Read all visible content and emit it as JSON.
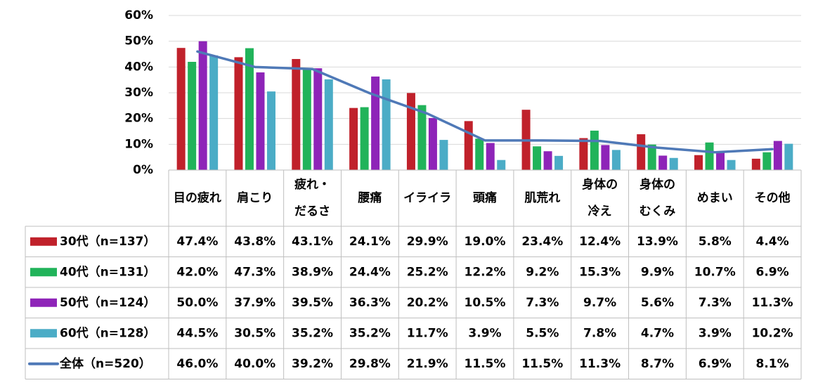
{
  "chart_data": {
    "type": "bar",
    "ylim": [
      0,
      60
    ],
    "yticks": [
      "0%",
      "10%",
      "20%",
      "30%",
      "40%",
      "50%",
      "60%"
    ],
    "grid": true,
    "categories": [
      [
        "目の疲れ"
      ],
      [
        "肩こり"
      ],
      [
        "疲れ・",
        "だるさ"
      ],
      [
        "腰痛"
      ],
      [
        "イライラ"
      ],
      [
        "頭痛"
      ],
      [
        "肌荒れ"
      ],
      [
        "身体の",
        "冷え"
      ],
      [
        "身体の",
        "むくみ"
      ],
      [
        "めまい"
      ],
      [
        "その他"
      ]
    ],
    "series": [
      {
        "name": "30代（n=137）",
        "kind": "bar",
        "color": "#C0212B",
        "values": [
          47.4,
          43.8,
          43.1,
          24.1,
          29.9,
          19.0,
          23.4,
          12.4,
          13.9,
          5.8,
          4.4
        ],
        "labels": [
          "47.4%",
          "43.8%",
          "43.1%",
          "24.1%",
          "29.9%",
          "19.0%",
          "23.4%",
          "12.4%",
          "13.9%",
          "5.8%",
          "4.4%"
        ]
      },
      {
        "name": "40代（n=131）",
        "kind": "bar",
        "color": "#21B35A",
        "values": [
          42.0,
          47.3,
          38.9,
          24.4,
          25.2,
          12.2,
          9.2,
          15.3,
          9.9,
          10.7,
          6.9
        ],
        "labels": [
          "42.0%",
          "47.3%",
          "38.9%",
          "24.4%",
          "25.2%",
          "12.2%",
          "9.2%",
          "15.3%",
          "9.9%",
          "10.7%",
          "6.9%"
        ]
      },
      {
        "name": "50代（n=124）",
        "kind": "bar",
        "color": "#8E24B8",
        "values": [
          50.0,
          37.9,
          39.5,
          36.3,
          20.2,
          10.5,
          7.3,
          9.7,
          5.6,
          7.3,
          11.3
        ],
        "labels": [
          "50.0%",
          "37.9%",
          "39.5%",
          "36.3%",
          "20.2%",
          "10.5%",
          "7.3%",
          "9.7%",
          "5.6%",
          "7.3%",
          "11.3%"
        ]
      },
      {
        "name": "60代（n=128）",
        "kind": "bar",
        "color": "#4BACC6",
        "values": [
          44.5,
          30.5,
          35.2,
          35.2,
          11.7,
          3.9,
          5.5,
          7.8,
          4.7,
          3.9,
          10.2
        ],
        "labels": [
          "44.5%",
          "30.5%",
          "35.2%",
          "35.2%",
          "11.7%",
          "3.9%",
          "5.5%",
          "7.8%",
          "4.7%",
          "3.9%",
          "10.2%"
        ]
      },
      {
        "name": "全体（n=520）",
        "kind": "line",
        "color": "#4F79B7",
        "values": [
          46.0,
          40.0,
          39.2,
          29.8,
          21.9,
          11.5,
          11.5,
          11.3,
          8.7,
          6.9,
          8.1
        ],
        "labels": [
          "46.0%",
          "40.0%",
          "39.2%",
          "29.8%",
          "21.9%",
          "11.5%",
          "11.5%",
          "11.3%",
          "8.7%",
          "6.9%",
          "8.1%"
        ]
      }
    ]
  }
}
